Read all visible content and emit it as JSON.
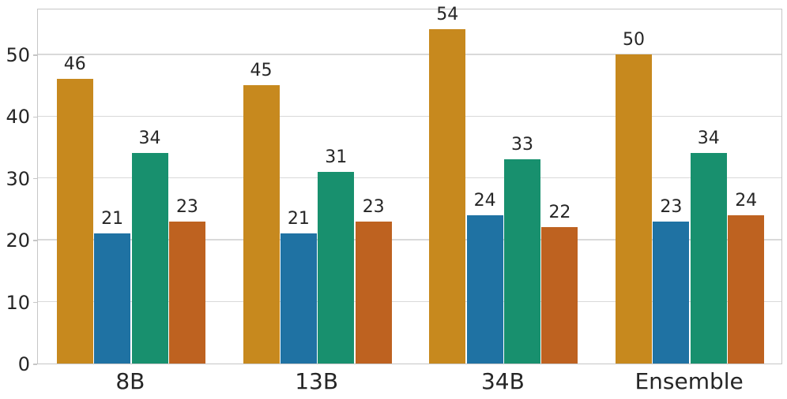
{
  "chart_data": {
    "type": "bar",
    "title": "",
    "xlabel": "",
    "ylabel": "",
    "categories": [
      "8B",
      "13B",
      "34B",
      "Ensemble"
    ],
    "series": [
      {
        "name": "series-gold",
        "color": "#C7891E",
        "values": [
          46,
          45,
          54,
          50
        ]
      },
      {
        "name": "series-blue",
        "color": "#1F72A3",
        "values": [
          21,
          21,
          24,
          23
        ]
      },
      {
        "name": "series-teal",
        "color": "#18906E",
        "values": [
          34,
          31,
          33,
          34
        ]
      },
      {
        "name": "series-rust",
        "color": "#BE6220",
        "values": [
          23,
          23,
          22,
          24
        ]
      }
    ],
    "bar_labels_shown": true,
    "yticks": [
      0,
      10,
      20,
      30,
      40,
      50
    ],
    "ylim": [
      0,
      57.5
    ],
    "grid": "horizontal",
    "legend": "none",
    "gridline_color": "#d9d9d9",
    "spine_color": "#c6c6c6",
    "text_color": "#262626"
  }
}
